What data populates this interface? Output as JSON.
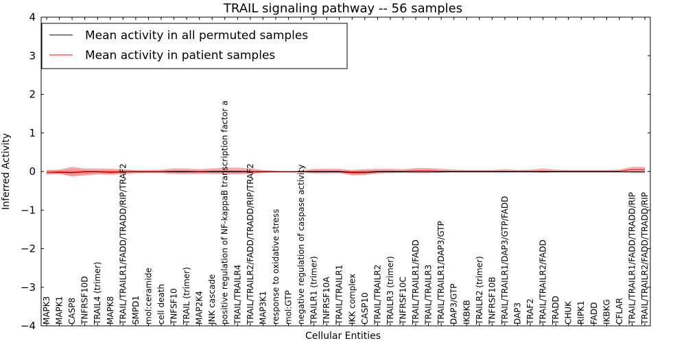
{
  "chart_data": {
    "type": "line",
    "title": "TRAIL signaling pathway -- 56 samples",
    "xlabel": "Cellular Entities",
    "ylabel": "Inferred Activity",
    "ylim": [
      -4,
      4
    ],
    "yticks": [
      4,
      3,
      2,
      1,
      0,
      -1,
      -2,
      -3,
      -4
    ],
    "ytick_labels": [
      "4",
      "3",
      "2",
      "1",
      "0",
      "−1",
      "−2",
      "−3",
      "−4"
    ],
    "grid": false,
    "legend_position": "top-left",
    "categories": [
      "MAPK3",
      "MAPK1",
      "CASP8",
      "TNFRSF10D",
      "TRAIL4 (trimer)",
      "MAPK8",
      "TRAIL/TRAILR1/FADD/TRADD/RIP/TRAF2",
      "SMPD1",
      "mol:ceramide",
      "cell death",
      "TNFSF10",
      "TRAIL (trimer)",
      "MAP2K4",
      "JNK cascade",
      "positive regulation of NF-kappaB transcription factor a",
      "TRAIL/TRAILR4",
      "TRAIL/TRAILR2/FADD/TRADD/RIP/TRAF2",
      "MAP3K1",
      "response to oxidative stress",
      "mol:GTP",
      "negative regulation of caspase activity",
      "TRAILR1 (trimer)",
      "TNFRSF10A",
      "TRAIL/TRAILR1",
      "IKK complex",
      "CASP10",
      "TRAIL/TRAILR2",
      "TRAILR3 (trimer)",
      "TNFRSF10C",
      "TRAIL/TRAILR1/FADD",
      "TRAIL/TRAILR3",
      "TRAIL/TRAILR1/DAP3/GTP",
      "DAP3/GTP",
      "IKBKB",
      "TRAILR2 (trimer)",
      "TNFRSF10B",
      "TRAIL/TRAILR1/DAP3/GTP/FADD",
      "DAP3",
      "TRAF2",
      "TRAIL/TRAILR2/FADD",
      "TRADD",
      "CHUK",
      "RIPK1",
      "FADD",
      "IKBKG",
      "CFLAR",
      "TRAIL/TRAILR1/FADD/TRADD/RIP",
      "TRAIL/TRAILR2/FADD/TRADD/RIP"
    ],
    "series": [
      {
        "name": "Mean activity in all permuted samples",
        "color": "#000000",
        "band_color": "#bbbbbb",
        "values": [
          -0.02,
          -0.02,
          -0.03,
          -0.01,
          -0.01,
          -0.02,
          -0.01,
          -0.01,
          -0.01,
          -0.01,
          -0.01,
          -0.01,
          -0.01,
          -0.01,
          -0.01,
          -0.01,
          -0.01,
          -0.01,
          -0.01,
          -0.01,
          -0.01,
          -0.01,
          -0.01,
          -0.01,
          -0.03,
          -0.03,
          -0.01,
          -0.01,
          -0.01,
          -0.01,
          -0.01,
          -0.01,
          -0.01,
          -0.01,
          -0.01,
          -0.01,
          -0.01,
          -0.01,
          -0.01,
          -0.01,
          -0.01,
          -0.01,
          -0.01,
          -0.01,
          -0.01,
          -0.01,
          -0.01,
          -0.01
        ],
        "lower": [
          -0.06,
          -0.07,
          -0.14,
          -0.08,
          -0.06,
          -0.08,
          -0.05,
          -0.04,
          -0.04,
          -0.04,
          -0.05,
          -0.06,
          -0.05,
          -0.05,
          -0.05,
          -0.05,
          -0.05,
          -0.03,
          -0.03,
          -0.02,
          -0.03,
          -0.04,
          -0.04,
          -0.05,
          -0.11,
          -0.1,
          -0.05,
          -0.04,
          -0.04,
          -0.04,
          -0.04,
          -0.03,
          -0.03,
          -0.03,
          -0.03,
          -0.03,
          -0.04,
          -0.03,
          -0.03,
          -0.03,
          -0.03,
          -0.03,
          -0.03,
          -0.03,
          -0.03,
          -0.03,
          -0.05,
          -0.05
        ],
        "upper": [
          0.03,
          0.03,
          0.06,
          0.04,
          0.03,
          0.03,
          0.03,
          0.02,
          0.02,
          0.02,
          0.03,
          0.03,
          0.03,
          0.03,
          0.03,
          0.03,
          0.03,
          0.02,
          0.01,
          0.01,
          0.01,
          0.02,
          0.02,
          0.02,
          0.02,
          0.02,
          0.02,
          0.02,
          0.02,
          0.02,
          0.02,
          0.01,
          0.01,
          0.01,
          0.01,
          0.01,
          0.02,
          0.01,
          0.01,
          0.02,
          0.01,
          0.01,
          0.01,
          0.01,
          0.01,
          0.01,
          0.02,
          0.02
        ]
      },
      {
        "name": "Mean activity in patient samples",
        "color": "#ff0000",
        "band_color": "#ff0000",
        "values": [
          -0.02,
          -0.01,
          -0.02,
          0.0,
          0.0,
          -0.01,
          0.0,
          0.0,
          0.0,
          0.0,
          0.01,
          0.01,
          0.0,
          0.01,
          0.01,
          0.01,
          0.0,
          0.0,
          0.0,
          0.0,
          0.0,
          0.01,
          0.01,
          0.01,
          -0.01,
          0.0,
          0.01,
          0.01,
          0.01,
          0.02,
          0.02,
          0.01,
          0.01,
          0.01,
          0.01,
          0.01,
          0.01,
          0.01,
          0.01,
          0.01,
          0.01,
          0.01,
          0.01,
          0.01,
          0.01,
          0.01,
          0.05,
          0.05
        ],
        "lower": [
          -0.08,
          -0.06,
          -0.12,
          -0.1,
          -0.07,
          -0.08,
          -0.07,
          -0.04,
          -0.04,
          -0.04,
          -0.06,
          -0.06,
          -0.06,
          -0.06,
          -0.07,
          -0.07,
          -0.06,
          -0.04,
          -0.02,
          -0.01,
          -0.02,
          -0.05,
          -0.05,
          -0.04,
          -0.09,
          -0.08,
          -0.05,
          -0.04,
          -0.03,
          -0.04,
          -0.04,
          -0.03,
          -0.02,
          -0.02,
          -0.02,
          -0.02,
          -0.02,
          -0.02,
          -0.02,
          -0.03,
          -0.02,
          -0.02,
          -0.02,
          -0.02,
          -0.02,
          -0.02,
          -0.03,
          -0.03
        ],
        "upper": [
          0.04,
          0.05,
          0.12,
          0.08,
          0.08,
          0.07,
          0.06,
          0.04,
          0.04,
          0.05,
          0.08,
          0.08,
          0.06,
          0.08,
          0.1,
          0.1,
          0.08,
          0.04,
          0.02,
          0.01,
          0.02,
          0.07,
          0.07,
          0.07,
          0.04,
          0.06,
          0.07,
          0.07,
          0.06,
          0.09,
          0.09,
          0.07,
          0.05,
          0.04,
          0.04,
          0.04,
          0.06,
          0.04,
          0.05,
          0.08,
          0.05,
          0.04,
          0.04,
          0.04,
          0.04,
          0.05,
          0.12,
          0.12
        ]
      }
    ]
  }
}
